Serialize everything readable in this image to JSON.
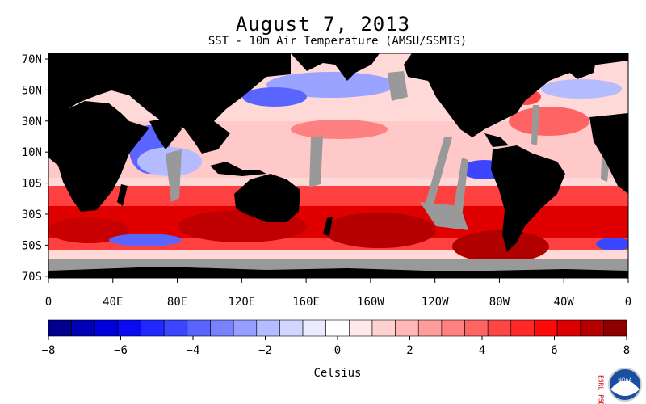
{
  "header": {
    "title": "August 7, 2013",
    "subtitle": "SST - 10m Air Temperature (AMSU/SSMIS)"
  },
  "map": {
    "lat_labels": [
      "70N",
      "50N",
      "30N",
      "10N",
      "10S",
      "30S",
      "50S",
      "70S"
    ],
    "lon_labels": [
      "0",
      "40E",
      "80E",
      "120E",
      "160E",
      "160W",
      "120W",
      "80W",
      "40W",
      "0"
    ],
    "colors": {
      "land": "#000000",
      "missing": "#999999"
    }
  },
  "colorbar": {
    "tick_labels": [
      "−8",
      "−6",
      "−4",
      "−2",
      "0",
      "2",
      "4",
      "6",
      "8"
    ],
    "unit_label": "Celsius",
    "colors": [
      "#00008c",
      "#0000b4",
      "#0000dc",
      "#0a0af0",
      "#1e28ff",
      "#3c46ff",
      "#5a64ff",
      "#7882ff",
      "#969fff",
      "#b4bbff",
      "#d2d6ff",
      "#ebedff",
      "#ffffff",
      "#ffe9e9",
      "#ffd2d2",
      "#ffb7b7",
      "#ff9c9c",
      "#ff8080",
      "#ff6464",
      "#ff4646",
      "#ff2828",
      "#ff0a0a",
      "#dc0000",
      "#b40000",
      "#8c0000"
    ]
  },
  "logo": {
    "side_text": "ESRL PSD",
    "agency": "NOAA"
  }
}
